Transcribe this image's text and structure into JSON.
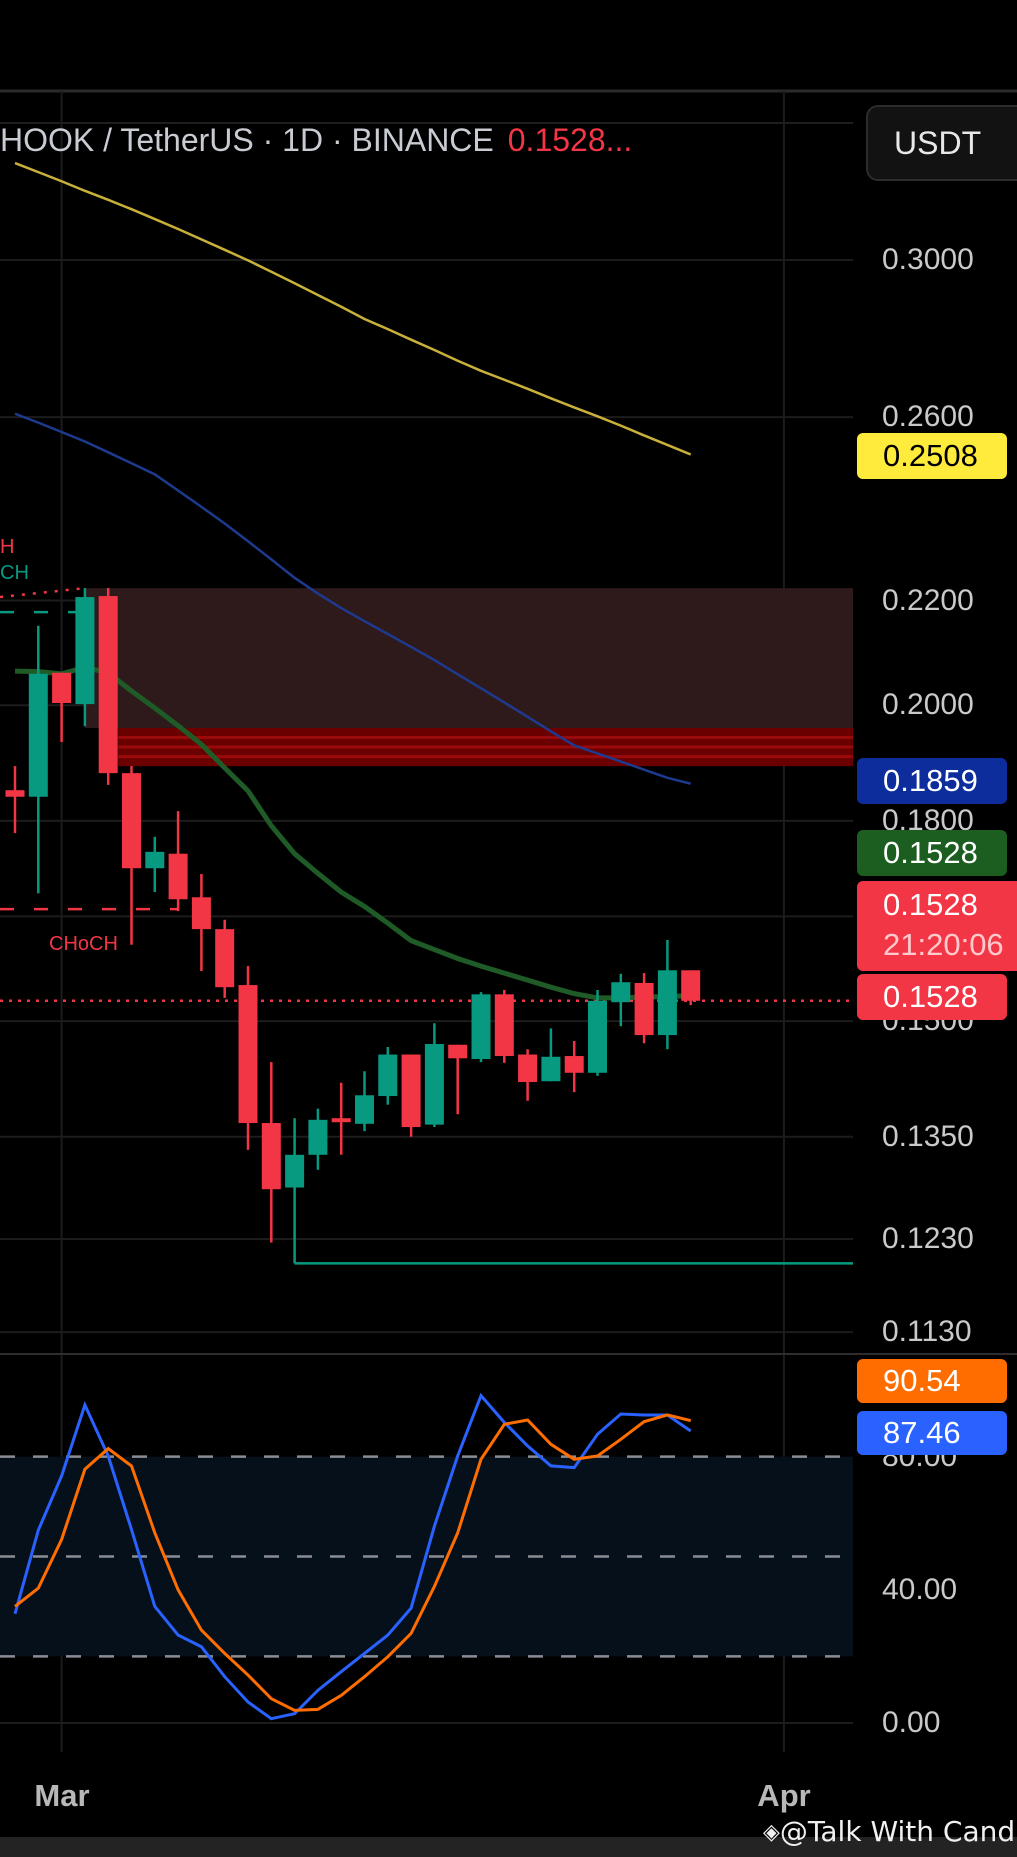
{
  "header": {
    "symbol_title": "HOOK / TetherUS · 1D · BINANCE",
    "last_price": "0.1528...",
    "currency_button": "USDT"
  },
  "price_axis": {
    "scale": "log",
    "labels": [
      {
        "text": "0.3000",
        "value": 0.3
      },
      {
        "text": "0.2600",
        "value": 0.26
      },
      {
        "text": "0.2200",
        "value": 0.22
      },
      {
        "text": "0.2000",
        "value": 0.2
      },
      {
        "text": "0.1800",
        "value": 0.18
      },
      {
        "text": "0.1500",
        "value": 0.15
      },
      {
        "text": "0.1350",
        "value": 0.135
      },
      {
        "text": "0.1230",
        "value": 0.123
      },
      {
        "text": "0.1130",
        "value": 0.113
      }
    ],
    "extra_gridlines": [
      0.165
    ]
  },
  "price_badges": {
    "ma_yellow": {
      "text": "0.2508",
      "value": 0.2508,
      "color": "#ffeb3b"
    },
    "ma_blue": {
      "text": "0.1859",
      "value": 0.1859,
      "color": "#0d2d9c"
    },
    "ma_green": {
      "text": "0.1528",
      "value": 0.1528,
      "color": "#1b5e20"
    },
    "last": {
      "text": "0.1528",
      "countdown": "21:20:06",
      "color": "#f23645"
    },
    "last_line": {
      "text": "0.1528",
      "value": 0.1528,
      "color": "#f23645"
    }
  },
  "annotations": {
    "top_red": "H",
    "top_teal": "CH",
    "choch": "CHoCH"
  },
  "time_axis": {
    "ticks": [
      {
        "text": "Mar",
        "date": "Mar 1"
      },
      {
        "text": "Apr",
        "date": "Apr 1"
      }
    ]
  },
  "oscillator": {
    "labels": [
      {
        "text": "80.00",
        "value": 80
      },
      {
        "text": "40.00",
        "value": 40
      },
      {
        "text": "0.00",
        "value": 0
      }
    ],
    "levels": [
      80,
      50,
      20
    ],
    "band": [
      20,
      80
    ],
    "badge_d": {
      "text": "90.54",
      "color": "#ff6d00"
    },
    "badge_k": {
      "text": "87.46",
      "color": "#2962ff"
    }
  },
  "watermark": "@Talk With Candle",
  "colors": {
    "up": "#089981",
    "down": "#f23645",
    "bg": "#000000"
  },
  "chart_data": [
    {
      "type": "candlestick",
      "title": "HOOK / TetherUS · 1D · BINANCE",
      "y_scale": "log",
      "ylim": [
        0.108,
        0.345
      ],
      "grid": true,
      "candles": [
        {
          "date": "Feb 27",
          "o": 0.1851,
          "h": 0.1892,
          "l": 0.178,
          "c": 0.184
        },
        {
          "date": "Feb 28",
          "o": 0.184,
          "h": 0.215,
          "l": 0.1685,
          "c": 0.2058
        },
        {
          "date": "Mar 1",
          "o": 0.206,
          "h": 0.206,
          "l": 0.1934,
          "c": 0.2004
        },
        {
          "date": "Mar 2",
          "o": 0.2002,
          "h": 0.2225,
          "l": 0.1962,
          "c": 0.2207
        },
        {
          "date": "Mar 3",
          "o": 0.2209,
          "h": 0.2225,
          "l": 0.186,
          "c": 0.188
        },
        {
          "date": "Mar 4",
          "o": 0.188,
          "h": 0.1892,
          "l": 0.1608,
          "c": 0.1724
        },
        {
          "date": "Mar 5",
          "o": 0.1724,
          "h": 0.1774,
          "l": 0.1687,
          "c": 0.175
        },
        {
          "date": "Mar 6",
          "o": 0.1747,
          "h": 0.1816,
          "l": 0.1658,
          "c": 0.1676
        },
        {
          "date": "Mar 7",
          "o": 0.1679,
          "h": 0.1715,
          "l": 0.157,
          "c": 0.1631
        },
        {
          "date": "Mar 8",
          "o": 0.1631,
          "h": 0.1645,
          "l": 0.1532,
          "c": 0.1547
        },
        {
          "date": "Mar 9",
          "o": 0.155,
          "h": 0.1577,
          "l": 0.1334,
          "c": 0.1367
        },
        {
          "date": "Mar 10",
          "o": 0.1367,
          "h": 0.1445,
          "l": 0.1226,
          "c": 0.1287
        },
        {
          "date": "Mar 11",
          "o": 0.1289,
          "h": 0.1373,
          "l": 0.1203,
          "c": 0.1328
        },
        {
          "date": "Mar 12",
          "o": 0.1328,
          "h": 0.1385,
          "l": 0.131,
          "c": 0.1371
        },
        {
          "date": "Mar 13",
          "o": 0.1373,
          "h": 0.1418,
          "l": 0.1328,
          "c": 0.1368
        },
        {
          "date": "Mar 14",
          "o": 0.1366,
          "h": 0.1433,
          "l": 0.1357,
          "c": 0.1402
        },
        {
          "date": "Mar 15",
          "o": 0.1401,
          "h": 0.1465,
          "l": 0.139,
          "c": 0.1455
        },
        {
          "date": "Mar 16",
          "o": 0.1455,
          "h": 0.1455,
          "l": 0.135,
          "c": 0.1362
        },
        {
          "date": "Mar 17",
          "o": 0.1365,
          "h": 0.1497,
          "l": 0.1362,
          "c": 0.1469
        },
        {
          "date": "Mar 18",
          "o": 0.1468,
          "h": 0.1468,
          "l": 0.1378,
          "c": 0.145
        },
        {
          "date": "Mar 19",
          "o": 0.1449,
          "h": 0.154,
          "l": 0.1445,
          "c": 0.1537
        },
        {
          "date": "Mar 20",
          "o": 0.1537,
          "h": 0.1543,
          "l": 0.1444,
          "c": 0.1453
        },
        {
          "date": "Mar 21",
          "o": 0.1455,
          "h": 0.1462,
          "l": 0.1395,
          "c": 0.1419
        },
        {
          "date": "Mar 22",
          "o": 0.142,
          "h": 0.149,
          "l": 0.142,
          "c": 0.1452
        },
        {
          "date": "Mar 23",
          "o": 0.1453,
          "h": 0.1473,
          "l": 0.1406,
          "c": 0.1431
        },
        {
          "date": "Mar 24",
          "o": 0.1431,
          "h": 0.1543,
          "l": 0.1427,
          "c": 0.1528
        },
        {
          "date": "Mar 25",
          "o": 0.1526,
          "h": 0.1566,
          "l": 0.1493,
          "c": 0.1554
        },
        {
          "date": "Mar 26",
          "o": 0.1553,
          "h": 0.1567,
          "l": 0.147,
          "c": 0.1481
        },
        {
          "date": "Mar 27",
          "o": 0.1481,
          "h": 0.1615,
          "l": 0.1462,
          "c": 0.1571
        },
        {
          "date": "Mar 28",
          "o": 0.1571,
          "h": 0.1571,
          "l": 0.1522,
          "c": 0.1528
        }
      ],
      "moving_averages": [
        {
          "color": "#c9b03a",
          "values": [
            0.3277,
            0.325,
            0.3223,
            0.3195,
            0.3169,
            0.3142,
            0.3114,
            0.3086,
            0.3057,
            0.3028,
            0.2999,
            0.2968,
            0.2937,
            0.2906,
            0.2875,
            0.2843,
            0.2817,
            0.279,
            0.2764,
            0.2737,
            0.2712,
            0.269,
            0.2668,
            0.2645,
            0.2623,
            0.2602,
            0.258,
            0.2557,
            0.2535,
            0.2513
          ]
        },
        {
          "color": "#1e3a8f",
          "values": [
            0.2608,
            0.2587,
            0.2565,
            0.2543,
            0.2518,
            0.2493,
            0.2468,
            0.2432,
            0.2396,
            0.236,
            0.2322,
            0.2284,
            0.2246,
            0.2214,
            0.2185,
            0.2159,
            0.2134,
            0.2109,
            0.2084,
            0.2057,
            0.2031,
            0.2005,
            0.1979,
            0.1953,
            0.1928,
            0.1914,
            0.19,
            0.1886,
            0.1872,
            0.1862
          ]
        },
        {
          "color": "#1e5b27",
          "values": [
            0.2063,
            0.2062,
            0.2058,
            0.207,
            0.206,
            0.2026,
            0.1995,
            0.1963,
            0.193,
            0.1889,
            0.185,
            0.1792,
            0.1747,
            0.1716,
            0.1687,
            0.1665,
            0.164,
            0.1614,
            0.1601,
            0.1588,
            0.1577,
            0.1567,
            0.1557,
            0.1547,
            0.1538,
            0.1532,
            0.1532,
            0.1533,
            0.1534,
            0.1535
          ]
        }
      ],
      "zones": [
        {
          "from": "Mar 2",
          "top": 0.2225,
          "bottom": 0.1959,
          "color": "#2e1a1b"
        },
        {
          "from": "Mar 3",
          "top": 0.1959,
          "bottom": 0.1892,
          "color": "#6b0000"
        }
      ],
      "levels": [
        {
          "price": 0.1203,
          "from": "Mar 11",
          "style": "solid",
          "color": "#089981"
        },
        {
          "price": 0.1661,
          "to": "Mar 6",
          "style": "dashed",
          "color": "#f23645"
        },
        {
          "price": 0.2177,
          "to": "Mar 2",
          "style": "dashed",
          "color": "#089981"
        },
        {
          "price": 0.1528,
          "style": "dotted",
          "color": "#f23645"
        }
      ]
    },
    {
      "type": "line",
      "ylim": [
        0,
        100
      ],
      "series": [
        {
          "color": "#2962ff",
          "values": [
            32.8,
            57.9,
            74.2,
            95.5,
            80.2,
            58.1,
            35.0,
            26.4,
            22.9,
            13.9,
            6.3,
            1.3,
            2.8,
            9.8,
            15.4,
            20.9,
            26.4,
            34.5,
            59.1,
            80.2,
            98.3,
            90.3,
            83.2,
            77.2,
            76.7,
            86.7,
            92.8,
            92.5,
            92.5,
            87.7
          ]
        },
        {
          "color": "#ff6d00",
          "values": [
            35.0,
            40.5,
            55.1,
            76.2,
            82.4,
            77.2,
            57.1,
            40.0,
            27.9,
            20.9,
            14.4,
            7.3,
            3.8,
            4.1,
            8.3,
            13.9,
            19.9,
            26.9,
            41.0,
            57.1,
            79.2,
            89.7,
            91.0,
            83.7,
            79.2,
            80.2,
            85.2,
            90.5,
            92.5,
            90.8
          ]
        }
      ]
    }
  ]
}
